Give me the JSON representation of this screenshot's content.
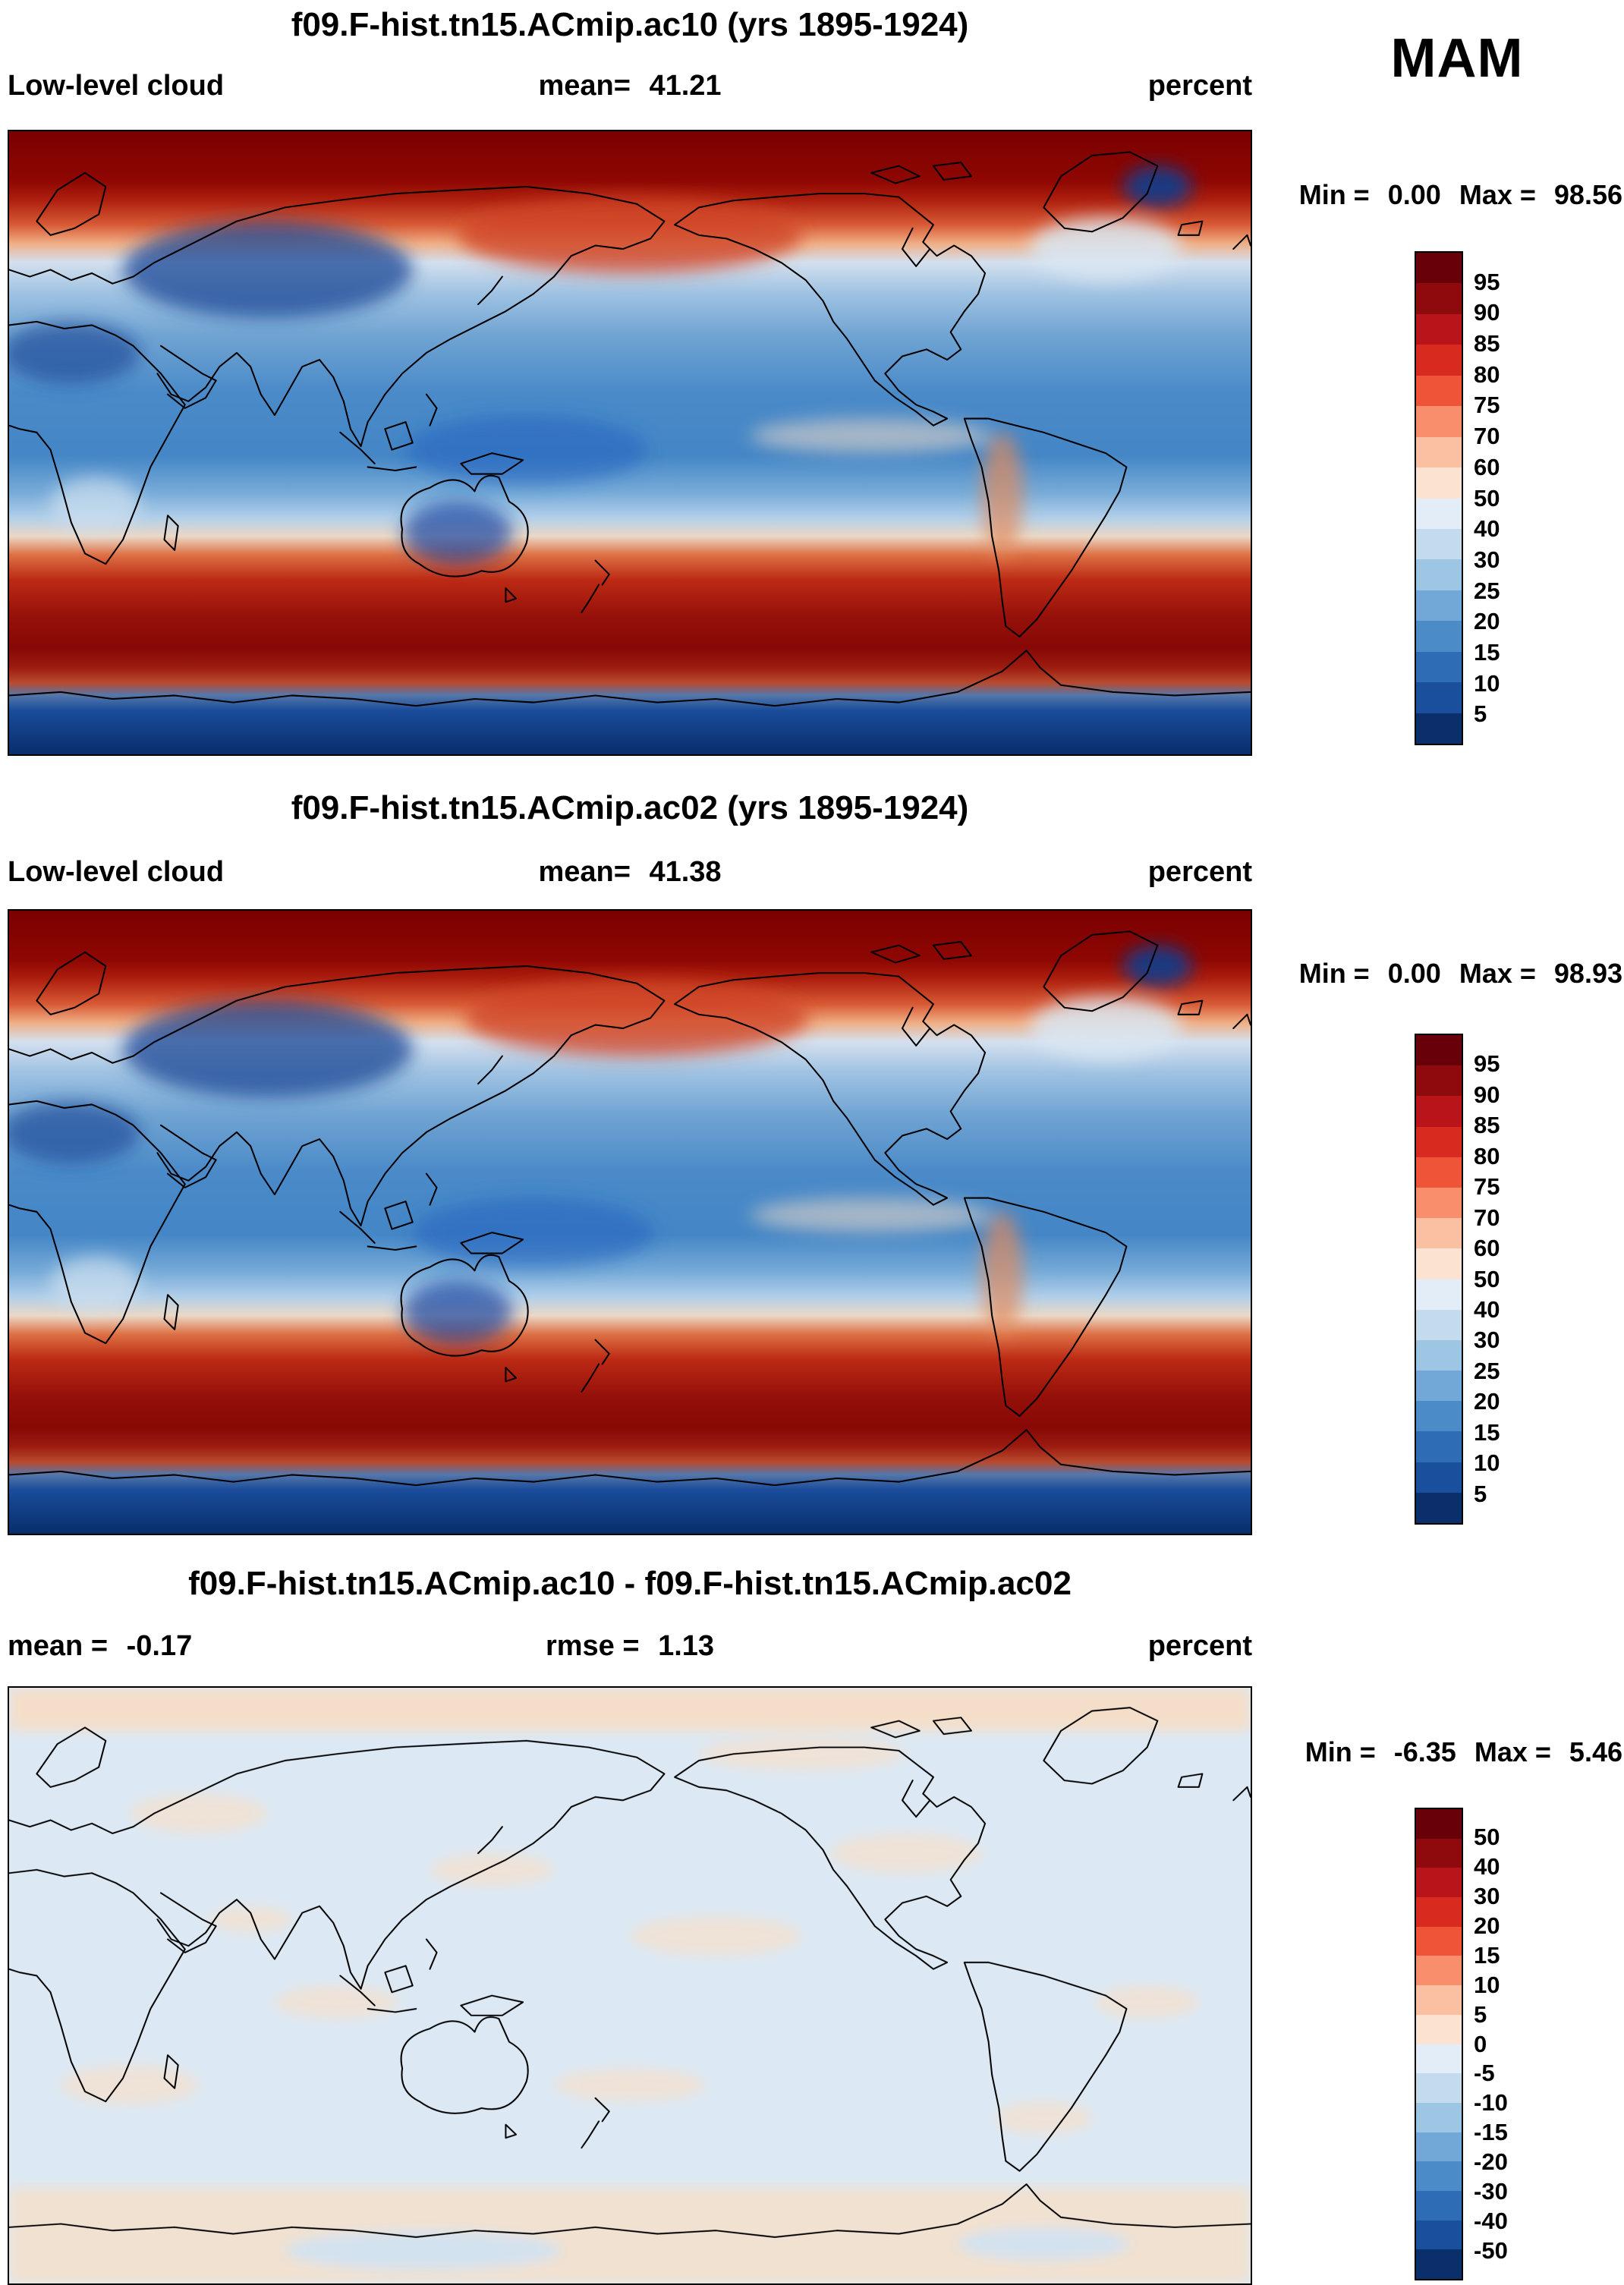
{
  "season": "MAM",
  "panels": [
    {
      "title": "f09.F-hist.tn15.ACmip.ac10 (yrs 1895-1924)",
      "var_label": "Low-level cloud",
      "mean_label": "mean=",
      "mean_value": "41.21",
      "units": "percent",
      "min_label": "Min =",
      "min_value": "0.00",
      "max_label": "Max =",
      "max_value": "98.56"
    },
    {
      "title": "f09.F-hist.tn15.ACmip.ac02 (yrs 1895-1924)",
      "var_label": "Low-level cloud",
      "mean_label": "mean=",
      "mean_value": "41.38",
      "units": "percent",
      "min_label": "Min =",
      "min_value": "0.00",
      "max_label": "Max =",
      "max_value": "98.93"
    },
    {
      "title": "f09.F-hist.tn15.ACmip.ac10 - f09.F-hist.tn15.ACmip.ac02",
      "mean_label": "mean =",
      "mean_value": "-0.17",
      "rmse_label": "rmse =",
      "rmse_value": "1.13",
      "units": "percent",
      "min_label": "Min =",
      "min_value": "-6.35",
      "max_label": "Max =",
      "max_value": "5.46"
    }
  ],
  "colorbar_full": {
    "ticks": [
      "95",
      "90",
      "85",
      "80",
      "75",
      "70",
      "60",
      "50",
      "40",
      "30",
      "25",
      "20",
      "15",
      "10",
      "5"
    ],
    "colors": [
      "#670009",
      "#8f0a0c",
      "#b81419",
      "#d92a20",
      "#ef5338",
      "#f98e6d",
      "#fbbfa2",
      "#fbe2d1",
      "#e3edf8",
      "#c4dbee",
      "#9dc6e4",
      "#71a8d7",
      "#4b8cc8",
      "#2e6cb5",
      "#1a4f9e",
      "#0b2f6b"
    ]
  },
  "colorbar_diff": {
    "ticks": [
      "50",
      "40",
      "30",
      "20",
      "15",
      "10",
      "5",
      "0",
      "-5",
      "-10",
      "-15",
      "-20",
      "-30",
      "-40",
      "-50"
    ],
    "colors": [
      "#670009",
      "#8f0a0c",
      "#b81419",
      "#d92a20",
      "#ef5338",
      "#f98e6d",
      "#fbbfa2",
      "#fbe2d1",
      "#e3edf8",
      "#c4dbee",
      "#9dc6e4",
      "#71a8d7",
      "#4b8cc8",
      "#2e6cb5",
      "#1a4f9e",
      "#0b2f6b"
    ]
  },
  "chart_data": {
    "type": "heatmap",
    "subtype": "global-latlon-filled-contour-maps",
    "season": "MAM",
    "variable": "Low-level cloud",
    "units": "percent",
    "projection": "cylindrical equidistant, Pacific-centered (lon 0-360E, lat 90N-90S)",
    "panels": [
      {
        "title": "f09.F-hist.tn15.ACmip.ac10 (yrs 1895-1924)",
        "mean": 41.21,
        "min": 0.0,
        "max": 98.56,
        "contour_levels": [
          5,
          10,
          15,
          20,
          25,
          30,
          40,
          50,
          60,
          70,
          75,
          80,
          85,
          90,
          95
        ]
      },
      {
        "title": "f09.F-hist.tn15.ACmip.ac02 (yrs 1895-1924)",
        "mean": 41.38,
        "min": 0.0,
        "max": 98.93,
        "contour_levels": [
          5,
          10,
          15,
          20,
          25,
          30,
          40,
          50,
          60,
          70,
          75,
          80,
          85,
          90,
          95
        ]
      },
      {
        "title": "f09.F-hist.tn15.ACmip.ac10 - f09.F-hist.tn15.ACmip.ac02",
        "mean": -0.17,
        "rmse": 1.13,
        "min": -6.35,
        "max": 5.46,
        "contour_levels": [
          -50,
          -40,
          -30,
          -20,
          -15,
          -10,
          -5,
          0,
          5,
          10,
          15,
          20,
          30,
          40,
          50
        ]
      }
    ],
    "colormap_hint": "16-bin blue(low/negative) to dark-red(high/positive) diverging palette",
    "legend_position": "right vertical colorbar per panel",
    "grid": false
  }
}
